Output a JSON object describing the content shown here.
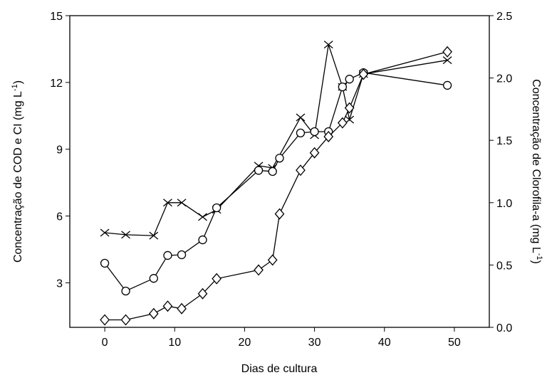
{
  "chart_data": {
    "type": "line",
    "xlabel": "Dias de cultura",
    "ylabel": {
      "text": "Concentração de COD e CI (mg L",
      "sup": "-1",
      "end": ")"
    },
    "y2label": {
      "text": "Concentração de Clorofila-a (mg L",
      "sup": "-1",
      "end": ")"
    },
    "xlim": [
      -5,
      55
    ],
    "xticks": [
      0,
      10,
      20,
      30,
      40,
      50
    ],
    "ylim": [
      1,
      15
    ],
    "yticks": [
      3,
      6,
      9,
      12,
      15
    ],
    "y2lim": [
      0,
      2.5
    ],
    "y2ticks": [
      {
        "value": 0,
        "label": "0.0"
      },
      0.5,
      {
        "value": 1,
        "label": "1.0"
      },
      1.5,
      {
        "value": 2,
        "label": "2.0"
      },
      2.5
    ],
    "series": [
      {
        "marker": "cross",
        "color": "#000000",
        "axis": "y",
        "x": [
          0,
          3,
          7,
          9,
          11,
          14,
          16,
          22,
          24,
          28,
          30,
          32,
          34,
          35,
          37,
          49
        ],
        "values": [
          5.25,
          5.16,
          5.12,
          6.6,
          6.6,
          5.96,
          6.28,
          8.26,
          8.16,
          10.43,
          9.63,
          13.7,
          11.8,
          10.33,
          12.38,
          13.0
        ]
      },
      {
        "marker": "circle",
        "color": "#000000",
        "axis": "y",
        "x": [
          0,
          3,
          7,
          9,
          11,
          14,
          16,
          22,
          24,
          25,
          28,
          30,
          32,
          34,
          35,
          37,
          49
        ],
        "values": [
          3.88,
          2.63,
          3.2,
          4.23,
          4.26,
          4.93,
          6.37,
          8.05,
          8.0,
          8.6,
          9.73,
          9.79,
          9.79,
          11.8,
          12.15,
          12.44,
          11.87
        ]
      },
      {
        "marker": "diamond",
        "color": "#000000",
        "axis": "y2",
        "x": [
          0,
          3,
          7,
          9,
          11,
          14,
          16,
          22,
          24,
          25,
          28,
          30,
          32,
          34,
          35,
          37,
          49
        ],
        "values": [
          0.06,
          0.06,
          0.11,
          0.17,
          0.15,
          0.27,
          0.39,
          0.46,
          0.54,
          0.91,
          1.26,
          1.4,
          1.53,
          1.64,
          1.76,
          2.03,
          2.21
        ]
      }
    ]
  }
}
